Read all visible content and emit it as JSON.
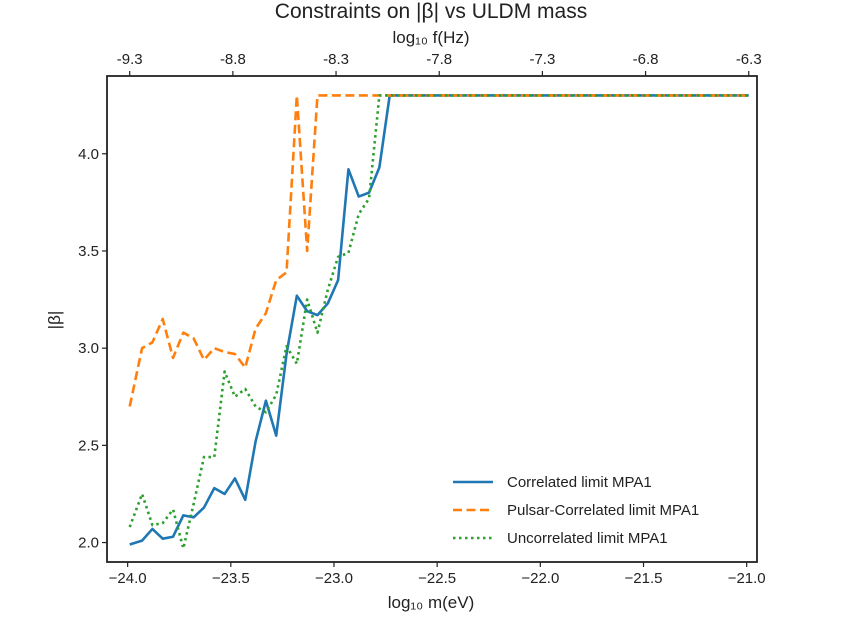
{
  "chart_data": {
    "type": "line",
    "title": "Constraints on |β| vs ULDM mass",
    "xlabel": "log₁₀ m(eV)",
    "top_xlabel": "log₁₀ f(Hz)",
    "ylabel": "|β|",
    "xlim": [
      -24.1,
      -20.95
    ],
    "ylim": [
      1.9,
      4.4
    ],
    "x_ticks": [
      -24.0,
      -23.5,
      -23.0,
      -22.5,
      -22.0,
      -21.5,
      -21.0
    ],
    "x_tick_labels": [
      "−24.0",
      "−23.5",
      "−23.0",
      "−22.5",
      "−22.0",
      "−21.5",
      "−21.0"
    ],
    "y_ticks": [
      2.0,
      2.5,
      3.0,
      3.5,
      4.0
    ],
    "y_tick_labels": [
      "2.0",
      "2.5",
      "3.0",
      "3.5",
      "4.0"
    ],
    "top_ticks_at_mass": [
      -23.99,
      -23.49,
      -22.99,
      -22.49,
      -21.99,
      -21.49,
      -20.99
    ],
    "top_tick_labels": [
      "-9.3",
      "-8.8",
      "-8.3",
      "-7.8",
      "-7.3",
      "-6.8",
      "-6.3"
    ],
    "legend_position": "lower-right",
    "series": [
      {
        "name": "Correlated limit MPA1",
        "color": "#1f77b4",
        "style": "solid",
        "x": [
          -23.99,
          -23.93,
          -23.88,
          -23.83,
          -23.78,
          -23.73,
          -23.68,
          -23.63,
          -23.58,
          -23.53,
          -23.48,
          -23.43,
          -23.38,
          -23.33,
          -23.28,
          -23.23,
          -23.18,
          -23.13,
          -23.08,
          -23.03,
          -22.98,
          -22.93,
          -22.88,
          -22.83,
          -22.78,
          -22.73,
          -22.68,
          -22.63,
          -22.58,
          -22.53,
          -22.48,
          -21.96,
          -21.44,
          -20.99
        ],
        "y": [
          1.99,
          2.01,
          2.07,
          2.02,
          2.03,
          2.14,
          2.13,
          2.18,
          2.28,
          2.25,
          2.33,
          2.22,
          2.52,
          2.73,
          2.55,
          2.97,
          3.27,
          3.19,
          3.17,
          3.23,
          3.35,
          3.92,
          3.78,
          3.8,
          3.93,
          4.3,
          4.3,
          4.3,
          4.3,
          4.3,
          4.3,
          4.3,
          4.3,
          4.3
        ]
      },
      {
        "name": "Pulsar-Correlated limit MPA1",
        "color": "#ff7f0e",
        "style": "dashed",
        "x": [
          -23.99,
          -23.93,
          -23.88,
          -23.83,
          -23.78,
          -23.73,
          -23.68,
          -23.63,
          -23.58,
          -23.53,
          -23.48,
          -23.43,
          -23.38,
          -23.33,
          -23.28,
          -23.23,
          -23.18,
          -23.13,
          -23.08,
          -23.03,
          -22.98,
          -22.93,
          -22.88,
          -22.83,
          -22.78,
          -22.73,
          -22.68,
          -22.63,
          -22.58,
          -22.53,
          -22.48,
          -21.96,
          -21.44,
          -20.99
        ],
        "y": [
          2.7,
          3.0,
          3.03,
          3.15,
          2.95,
          3.08,
          3.05,
          2.94,
          3.0,
          2.98,
          2.97,
          2.9,
          3.1,
          3.18,
          3.35,
          3.39,
          4.3,
          3.5,
          4.3,
          4.3,
          4.3,
          4.3,
          4.3,
          4.3,
          4.3,
          4.3,
          4.3,
          4.3,
          4.3,
          4.3,
          4.3,
          4.3,
          4.3,
          4.3
        ]
      },
      {
        "name": "Uncorrelated limit MPA1",
        "color": "#2ca02c",
        "style": "dotted",
        "x": [
          -23.99,
          -23.93,
          -23.88,
          -23.83,
          -23.78,
          -23.73,
          -23.68,
          -23.63,
          -23.58,
          -23.53,
          -23.48,
          -23.43,
          -23.38,
          -23.33,
          -23.28,
          -23.23,
          -23.18,
          -23.13,
          -23.08,
          -23.03,
          -22.98,
          -22.93,
          -22.88,
          -22.83,
          -22.78,
          -22.73,
          -22.68,
          -22.63,
          -22.58,
          -22.53,
          -22.48,
          -21.96,
          -21.44,
          -20.99
        ],
        "y": [
          2.08,
          2.25,
          2.09,
          2.1,
          2.17,
          1.97,
          2.2,
          2.44,
          2.44,
          2.88,
          2.75,
          2.79,
          2.7,
          2.67,
          2.76,
          3.01,
          2.92,
          3.25,
          3.08,
          3.3,
          3.47,
          3.49,
          3.69,
          3.77,
          4.3,
          4.3,
          4.3,
          4.3,
          4.3,
          4.3,
          4.3,
          4.3,
          4.3,
          4.3
        ]
      }
    ]
  }
}
